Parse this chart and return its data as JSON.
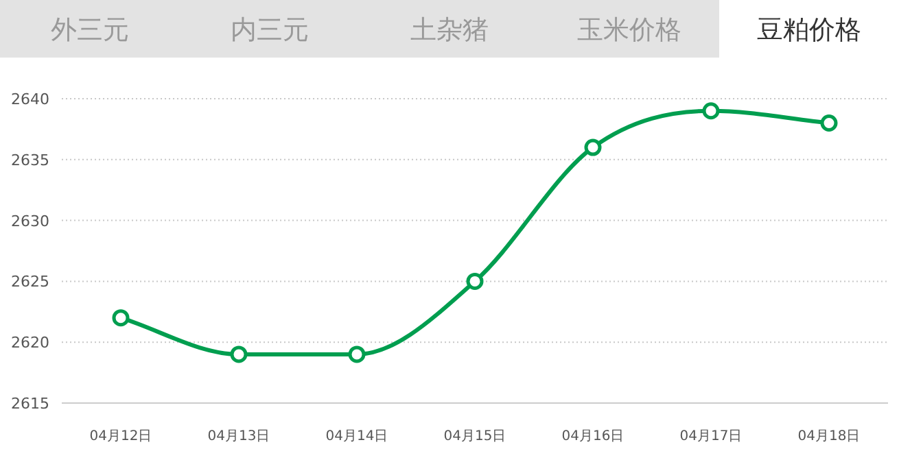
{
  "chart_data": {
    "type": "line",
    "title": "豆粕价格",
    "annotations": [
      "外三元",
      "内三元",
      "土杂猪",
      "玉米价格"
    ],
    "categories": [
      "04月12日",
      "04月13日",
      "04月14日",
      "04月15日",
      "04月16日",
      "04月17日",
      "04月18日"
    ],
    "series": [
      {
        "color": "#009e4f",
        "values": [
          2622,
          2619,
          2619,
          2625,
          2636,
          2639,
          2638
        ]
      }
    ],
    "ylim": [
      2615,
      2640
    ],
    "yticks": [
      2615,
      2620,
      2625,
      2630,
      2635,
      2640
    ],
    "grid": "y",
    "marker": "circle",
    "line_style": "solid"
  }
}
